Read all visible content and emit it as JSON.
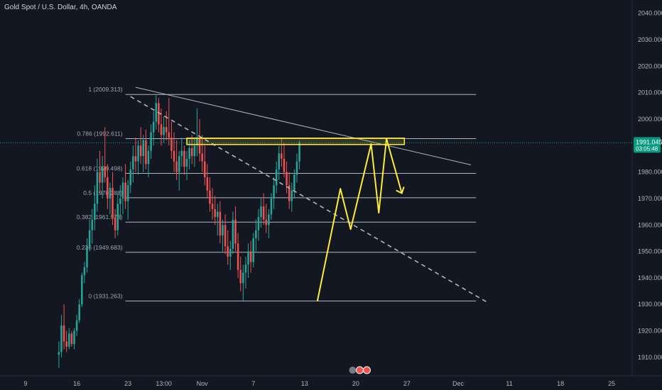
{
  "header": {
    "title": "Gold Spot / U.S. Dollar, 4h, OANDA"
  },
  "colors": {
    "background": "#131722",
    "up": "#26a69a",
    "down": "#ef5350",
    "fib_line": "#b2b5be",
    "trend_line": "#b2b5be",
    "annotation": "#ffeb3b",
    "price_badge": "#089981",
    "axis_text": "#b2b5be"
  },
  "chart_data": {
    "type": "candlestick",
    "symbol": "Gold Spot / U.S. Dollar",
    "interval": "4h",
    "source": "OANDA",
    "ylim": [
      1903,
      2045
    ],
    "y_ticks": [
      {
        "value": 2040,
        "label": "2040.000"
      },
      {
        "value": 2030,
        "label": "2030.000"
      },
      {
        "value": 2020,
        "label": "2020.000"
      },
      {
        "value": 2010,
        "label": "2010.000"
      },
      {
        "value": 2000,
        "label": "2000.000"
      },
      {
        "value": 1980,
        "label": "1980.000"
      },
      {
        "value": 1970,
        "label": "1970.000"
      },
      {
        "value": 1960,
        "label": "1960.000"
      },
      {
        "value": 1950,
        "label": "1950.000"
      },
      {
        "value": 1940,
        "label": "1940.000"
      },
      {
        "value": 1930,
        "label": "1930.000"
      },
      {
        "value": 1920,
        "label": "1920.000"
      },
      {
        "value": 1910,
        "label": "1910.000"
      }
    ],
    "x_ticks": [
      {
        "bar": -13,
        "label": "9"
      },
      {
        "bar": 7,
        "label": "16"
      },
      {
        "bar": 27,
        "label": "23"
      },
      {
        "bar": 41,
        "label": "13:00"
      },
      {
        "bar": 56,
        "label": "Nov"
      },
      {
        "bar": 76,
        "label": "7"
      },
      {
        "bar": 96,
        "label": "13"
      },
      {
        "bar": 116,
        "label": "20"
      },
      {
        "bar": 136,
        "label": "27"
      },
      {
        "bar": 156,
        "label": "Dec"
      },
      {
        "bar": 176,
        "label": "11"
      },
      {
        "bar": 196,
        "label": "18"
      },
      {
        "bar": 216,
        "label": "25"
      }
    ],
    "xlim": [
      -23,
      224
    ],
    "last_price": {
      "value": 1991.045,
      "label": "1991.045",
      "countdown": "03:05:48"
    },
    "fibonacci": {
      "start_bar": 26,
      "end_bar": 163,
      "levels": [
        {
          "ratio": "1",
          "price": 2009.313,
          "label": "1 (2009.313)"
        },
        {
          "ratio": "0.786",
          "price": 1992.611,
          "label": "0.786 (1992.611)"
        },
        {
          "ratio": "0.618",
          "price": 1979.498,
          "label": "0.618 (1979.498)"
        },
        {
          "ratio": "0.5",
          "price": 1970.288,
          "label": "0.5 (1970.288)"
        },
        {
          "ratio": "0.382",
          "price": 1961.078,
          "label": "0.382 (1961.078)"
        },
        {
          "ratio": "0.236",
          "price": 1949.683,
          "label": "0.236 (1949.683)"
        },
        {
          "ratio": "0",
          "price": 1931.263,
          "label": "0 (1931.263)"
        }
      ]
    },
    "trendlines": [
      {
        "style": "solid",
        "from": {
          "bar": 30,
          "price": 2012.0
        },
        "to": {
          "bar": 161,
          "price": 1982.7
        }
      },
      {
        "style": "dashed",
        "from": {
          "bar": 28,
          "price": 2008.5
        },
        "to": {
          "bar": 167,
          "price": 1931.0
        }
      }
    ],
    "zone": {
      "from_bar": 50,
      "to_bar": 135,
      "top": 1992.8,
      "bottom": 1990.4
    },
    "projection_path": [
      {
        "bar": 101,
        "price": 1931.2
      },
      {
        "bar": 110,
        "price": 1973.7
      },
      {
        "bar": 114,
        "price": 1958.4
      },
      {
        "bar": 122,
        "price": 1990.6
      },
      {
        "bar": 125,
        "price": 1964.6
      },
      {
        "bar": 128,
        "price": 1992.6
      },
      {
        "bar": 134,
        "price": 1972.0
      }
    ],
    "candles": [
      {
        "o": 1911.0,
        "h": 1916.0,
        "l": 1906.0,
        "c": 1912.0
      },
      {
        "o": 1912.0,
        "h": 1926.0,
        "l": 1910.0,
        "c": 1922.0
      },
      {
        "o": 1922.0,
        "h": 1930.0,
        "l": 1913.0,
        "c": 1916.0
      },
      {
        "o": 1916.0,
        "h": 1920.0,
        "l": 1912.0,
        "c": 1914.0
      },
      {
        "o": 1914.0,
        "h": 1921.0,
        "l": 1913.0,
        "c": 1919.0
      },
      {
        "o": 1919.0,
        "h": 1920.0,
        "l": 1914.0,
        "c": 1915.0
      },
      {
        "o": 1915.0,
        "h": 1921.0,
        "l": 1913.0,
        "c": 1920.0
      },
      {
        "o": 1920.0,
        "h": 1926.0,
        "l": 1918.0,
        "c": 1924.0
      },
      {
        "o": 1924.0,
        "h": 1932.0,
        "l": 1923.0,
        "c": 1930.0
      },
      {
        "o": 1930.0,
        "h": 1942.0,
        "l": 1929.0,
        "c": 1941.0
      },
      {
        "o": 1941.0,
        "h": 1946.0,
        "l": 1938.0,
        "c": 1944.0
      },
      {
        "o": 1944.0,
        "h": 1955.0,
        "l": 1942.0,
        "c": 1952.0
      },
      {
        "o": 1952.0,
        "h": 1962.0,
        "l": 1950.0,
        "c": 1958.0
      },
      {
        "o": 1958.0,
        "h": 1966.0,
        "l": 1953.0,
        "c": 1962.0
      },
      {
        "o": 1962.0,
        "h": 1975.0,
        "l": 1958.0,
        "c": 1968.0
      },
      {
        "o": 1968.0,
        "h": 1985.0,
        "l": 1965.0,
        "c": 1980.0
      },
      {
        "o": 1980.0,
        "h": 1988.0,
        "l": 1972.0,
        "c": 1976.0
      },
      {
        "o": 1976.0,
        "h": 1986.0,
        "l": 1970.0,
        "c": 1982.0
      },
      {
        "o": 1982.0,
        "h": 1997.0,
        "l": 1976.0,
        "c": 1978.0
      },
      {
        "o": 1978.0,
        "h": 1983.0,
        "l": 1966.0,
        "c": 1970.0
      },
      {
        "o": 1970.0,
        "h": 1976.0,
        "l": 1964.0,
        "c": 1974.0
      },
      {
        "o": 1974.0,
        "h": 1980.0,
        "l": 1960.0,
        "c": 1963.0
      },
      {
        "o": 1963.0,
        "h": 1966.0,
        "l": 1955.0,
        "c": 1958.0
      },
      {
        "o": 1958.0,
        "h": 1972.0,
        "l": 1956.0,
        "c": 1968.0
      },
      {
        "o": 1968.0,
        "h": 1975.0,
        "l": 1962.0,
        "c": 1970.0
      },
      {
        "o": 1970.0,
        "h": 1978.0,
        "l": 1964.0,
        "c": 1976.0
      },
      {
        "o": 1976.0,
        "h": 1983.0,
        "l": 1966.0,
        "c": 1969.0
      },
      {
        "o": 1969.0,
        "h": 1977.0,
        "l": 1962.0,
        "c": 1975.0
      },
      {
        "o": 1975.0,
        "h": 1984.0,
        "l": 1972.0,
        "c": 1981.0
      },
      {
        "o": 1981.0,
        "h": 1990.0,
        "l": 1976.0,
        "c": 1986.0
      },
      {
        "o": 1986.0,
        "h": 1993.0,
        "l": 1980.0,
        "c": 1984.0
      },
      {
        "o": 1984.0,
        "h": 1992.0,
        "l": 1979.0,
        "c": 1990.0
      },
      {
        "o": 1990.0,
        "h": 1997.0,
        "l": 1983.0,
        "c": 1986.0
      },
      {
        "o": 1986.0,
        "h": 1994.0,
        "l": 1980.0,
        "c": 1992.0
      },
      {
        "o": 1992.0,
        "h": 1996.0,
        "l": 1981.0,
        "c": 1983.0
      },
      {
        "o": 1983.0,
        "h": 1990.0,
        "l": 1978.0,
        "c": 1988.0
      },
      {
        "o": 1988.0,
        "h": 1998.0,
        "l": 1985.0,
        "c": 1995.0
      },
      {
        "o": 1995.0,
        "h": 2003.0,
        "l": 1990.0,
        "c": 1999.0
      },
      {
        "o": 1999.0,
        "h": 2009.0,
        "l": 1996.0,
        "c": 2006.0
      },
      {
        "o": 2006.0,
        "h": 2008.0,
        "l": 1995.0,
        "c": 1998.0
      },
      {
        "o": 1998.0,
        "h": 2004.0,
        "l": 1990.0,
        "c": 1994.0
      },
      {
        "o": 1994.0,
        "h": 2001.0,
        "l": 1991.0,
        "c": 1997.0
      },
      {
        "o": 1997.0,
        "h": 2003.0,
        "l": 1992.0,
        "c": 1995.0
      },
      {
        "o": 1995.0,
        "h": 2008.0,
        "l": 1990.0,
        "c": 1993.0
      },
      {
        "o": 1993.0,
        "h": 1999.0,
        "l": 1985.0,
        "c": 1988.0
      },
      {
        "o": 1988.0,
        "h": 1995.0,
        "l": 1980.0,
        "c": 1984.0
      },
      {
        "o": 1984.0,
        "h": 1992.0,
        "l": 1977.0,
        "c": 1980.0
      },
      {
        "o": 1980.0,
        "h": 1988.0,
        "l": 1973.0,
        "c": 1986.0
      },
      {
        "o": 1986.0,
        "h": 1993.0,
        "l": 1982.0,
        "c": 1988.0
      },
      {
        "o": 1988.0,
        "h": 1990.0,
        "l": 1979.0,
        "c": 1982.0
      },
      {
        "o": 1982.0,
        "h": 1988.0,
        "l": 1977.0,
        "c": 1985.0
      },
      {
        "o": 1985.0,
        "h": 1992.0,
        "l": 1981.0,
        "c": 1989.0
      },
      {
        "o": 1989.0,
        "h": 1994.0,
        "l": 1983.0,
        "c": 1986.0
      },
      {
        "o": 1986.0,
        "h": 1993.0,
        "l": 1982.0,
        "c": 1990.0
      },
      {
        "o": 1990.0,
        "h": 2004.0,
        "l": 1986.0,
        "c": 1993.0
      },
      {
        "o": 1993.0,
        "h": 2000.0,
        "l": 1984.0,
        "c": 1987.0
      },
      {
        "o": 1987.0,
        "h": 1994.0,
        "l": 1980.0,
        "c": 1984.0
      },
      {
        "o": 1984.0,
        "h": 1990.0,
        "l": 1975.0,
        "c": 1978.0
      },
      {
        "o": 1978.0,
        "h": 1983.0,
        "l": 1970.0,
        "c": 1973.0
      },
      {
        "o": 1973.0,
        "h": 1978.0,
        "l": 1965.0,
        "c": 1968.0
      },
      {
        "o": 1968.0,
        "h": 1974.0,
        "l": 1962.0,
        "c": 1966.0
      },
      {
        "o": 1966.0,
        "h": 1971.0,
        "l": 1960.0,
        "c": 1963.0
      },
      {
        "o": 1963.0,
        "h": 1968.0,
        "l": 1956.0,
        "c": 1965.0
      },
      {
        "o": 1965.0,
        "h": 1969.0,
        "l": 1953.0,
        "c": 1956.0
      },
      {
        "o": 1956.0,
        "h": 1962.0,
        "l": 1950.0,
        "c": 1960.0
      },
      {
        "o": 1960.0,
        "h": 1964.0,
        "l": 1949.0,
        "c": 1952.0
      },
      {
        "o": 1952.0,
        "h": 1958.0,
        "l": 1945.0,
        "c": 1948.0
      },
      {
        "o": 1948.0,
        "h": 1954.0,
        "l": 1943.0,
        "c": 1951.0
      },
      {
        "o": 1951.0,
        "h": 1965.0,
        "l": 1949.0,
        "c": 1962.0
      },
      {
        "o": 1962.0,
        "h": 1967.0,
        "l": 1950.0,
        "c": 1953.0
      },
      {
        "o": 1953.0,
        "h": 1957.0,
        "l": 1940.0,
        "c": 1943.0
      },
      {
        "o": 1943.0,
        "h": 1948.0,
        "l": 1935.0,
        "c": 1938.0
      },
      {
        "o": 1938.0,
        "h": 1945.0,
        "l": 1931.0,
        "c": 1942.0
      },
      {
        "o": 1942.0,
        "h": 1948.0,
        "l": 1936.0,
        "c": 1945.0
      },
      {
        "o": 1945.0,
        "h": 1953.0,
        "l": 1940.0,
        "c": 1950.0
      },
      {
        "o": 1950.0,
        "h": 1954.0,
        "l": 1942.0,
        "c": 1946.0
      },
      {
        "o": 1946.0,
        "h": 1957.0,
        "l": 1944.0,
        "c": 1955.0
      },
      {
        "o": 1955.0,
        "h": 1962.0,
        "l": 1950.0,
        "c": 1958.0
      },
      {
        "o": 1958.0,
        "h": 1966.0,
        "l": 1954.0,
        "c": 1963.0
      },
      {
        "o": 1963.0,
        "h": 1970.0,
        "l": 1959.0,
        "c": 1967.0
      },
      {
        "o": 1967.0,
        "h": 1972.0,
        "l": 1960.0,
        "c": 1962.0
      },
      {
        "o": 1962.0,
        "h": 1968.0,
        "l": 1957.0,
        "c": 1960.0
      },
      {
        "o": 1960.0,
        "h": 1966.0,
        "l": 1955.0,
        "c": 1964.0
      },
      {
        "o": 1964.0,
        "h": 1972.0,
        "l": 1962.0,
        "c": 1970.0
      },
      {
        "o": 1970.0,
        "h": 1978.0,
        "l": 1966.0,
        "c": 1975.0
      },
      {
        "o": 1975.0,
        "h": 1984.0,
        "l": 1972.0,
        "c": 1981.0
      },
      {
        "o": 1981.0,
        "h": 1990.0,
        "l": 1977.0,
        "c": 1987.0
      },
      {
        "o": 1987.0,
        "h": 1993.0,
        "l": 1982.0,
        "c": 1985.0
      },
      {
        "o": 1985.0,
        "h": 1991.0,
        "l": 1978.0,
        "c": 1980.0
      },
      {
        "o": 1980.0,
        "h": 1984.0,
        "l": 1972.0,
        "c": 1975.0
      },
      {
        "o": 1975.0,
        "h": 1980.0,
        "l": 1966.0,
        "c": 1969.0
      },
      {
        "o": 1969.0,
        "h": 1976.0,
        "l": 1965.0,
        "c": 1973.0
      },
      {
        "o": 1973.0,
        "h": 1981.0,
        "l": 1970.0,
        "c": 1979.0
      },
      {
        "o": 1979.0,
        "h": 1987.0,
        "l": 1976.0,
        "c": 1984.0
      },
      {
        "o": 1984.0,
        "h": 1992.0,
        "l": 1981.0,
        "c": 1991.0
      }
    ]
  }
}
